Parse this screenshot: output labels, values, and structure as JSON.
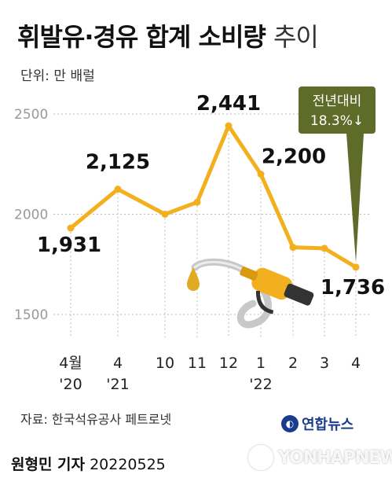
{
  "title": {
    "main": "휘발유·경유 합계 소비량",
    "suffix": "추이"
  },
  "unit": "단위: 만 배럴",
  "callout": {
    "line1": "전년대비",
    "line2": "18.3%↓"
  },
  "source": "자료: 한국석유공사 페트로넷",
  "brand": "연합뉴스",
  "author": "원형민 기자",
  "date": "20220525",
  "watermark": "YONHAPNEWS",
  "colors": {
    "line": "#f2b01e",
    "callout": "#5f6b28",
    "grid": "#bbbbbb",
    "pump_nozzle": "#f2b01e"
  },
  "chart_data": {
    "type": "line",
    "categories": [
      [
        "4월",
        "'20"
      ],
      [
        "4",
        "'21"
      ],
      [
        "10"
      ],
      [
        "11"
      ],
      [
        "12"
      ],
      [
        "1",
        "'22"
      ],
      [
        "2"
      ],
      [
        "3"
      ],
      [
        "4"
      ]
    ],
    "values": [
      1931,
      2125,
      2000,
      2060,
      2441,
      2200,
      1835,
      1830,
      1736
    ],
    "labels": [
      {
        "index": 0,
        "text": "1,931"
      },
      {
        "index": 1,
        "text": "2,125"
      },
      {
        "index": 4,
        "text": "2,441"
      },
      {
        "index": 5,
        "text": "2,200"
      },
      {
        "index": 8,
        "text": "1,736"
      }
    ],
    "yticks": [
      1500,
      2000,
      2500
    ],
    "ylim": [
      1500,
      2500
    ],
    "grid": "horizontal dotted",
    "xlabel": "",
    "ylabel": ""
  }
}
